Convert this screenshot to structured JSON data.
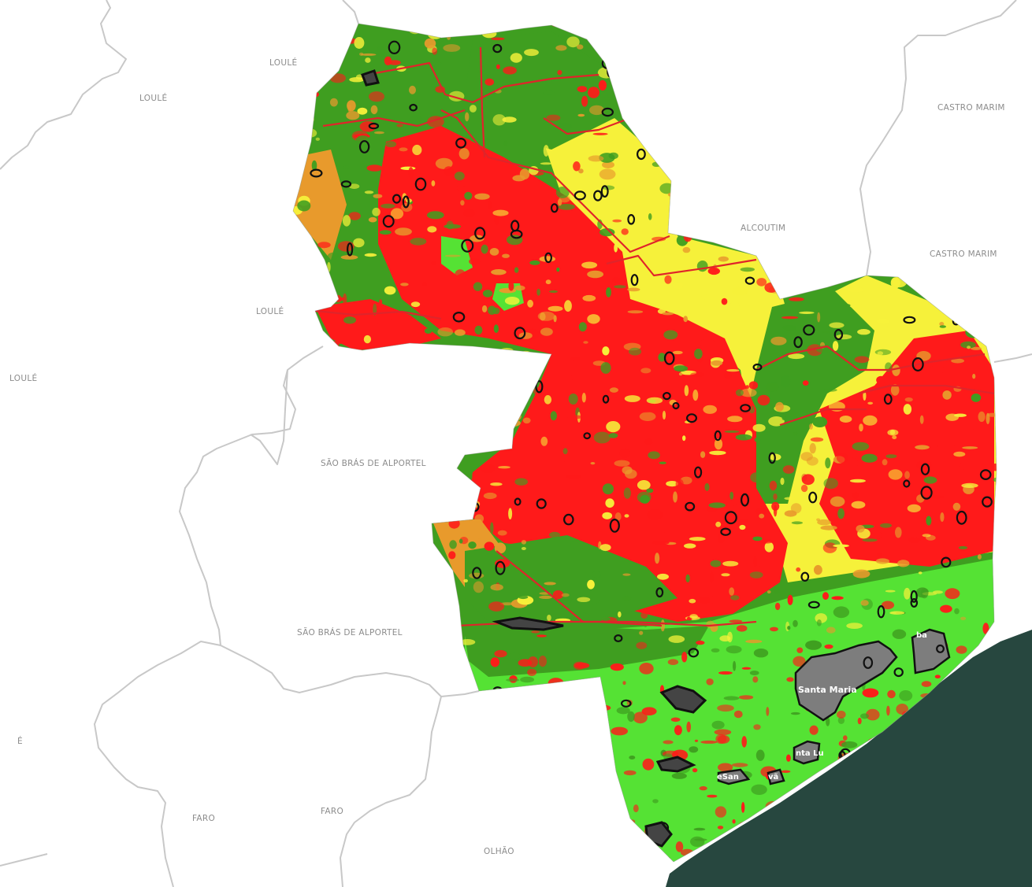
{
  "map": {
    "colors": {
      "background": "#ffffff",
      "boundary": "#c8c8c8",
      "label": "#8c8c8c",
      "sea": "#27473f",
      "very_high": "#ff1a1a",
      "high": "#e89a2c",
      "moderate": "#f6f13a",
      "low": "#3f9e20",
      "very_low": "#55e234",
      "urban": "#7d7d7d",
      "settlement_outline": "#111111"
    },
    "labels": {
      "loule_1": "LOULÉ",
      "loule_2": "LOULÉ",
      "loule_3": "LOULÉ",
      "loule_4": "LOULÉ",
      "castro_marim_1": "CASTRO MARIM",
      "castro_marim_2": "CASTRO MARIM",
      "alcoutim": "ALCOUTIM",
      "sao_bras_1": "SÃO BRÁS DE ALPORTEL",
      "sao_bras_2": "SÃO BRÁS DE ALPORTEL",
      "faro_1": "FARO",
      "faro_2": "FARO",
      "olhao": "OLHÃO",
      "e_fragment": "É"
    },
    "towns": {
      "santa_maria": "Santa Maria",
      "santa_luzia": "nta Lu",
      "santo_estevao": "eSan",
      "estevao_tail": "vã",
      "cabanas": "ba"
    }
  }
}
